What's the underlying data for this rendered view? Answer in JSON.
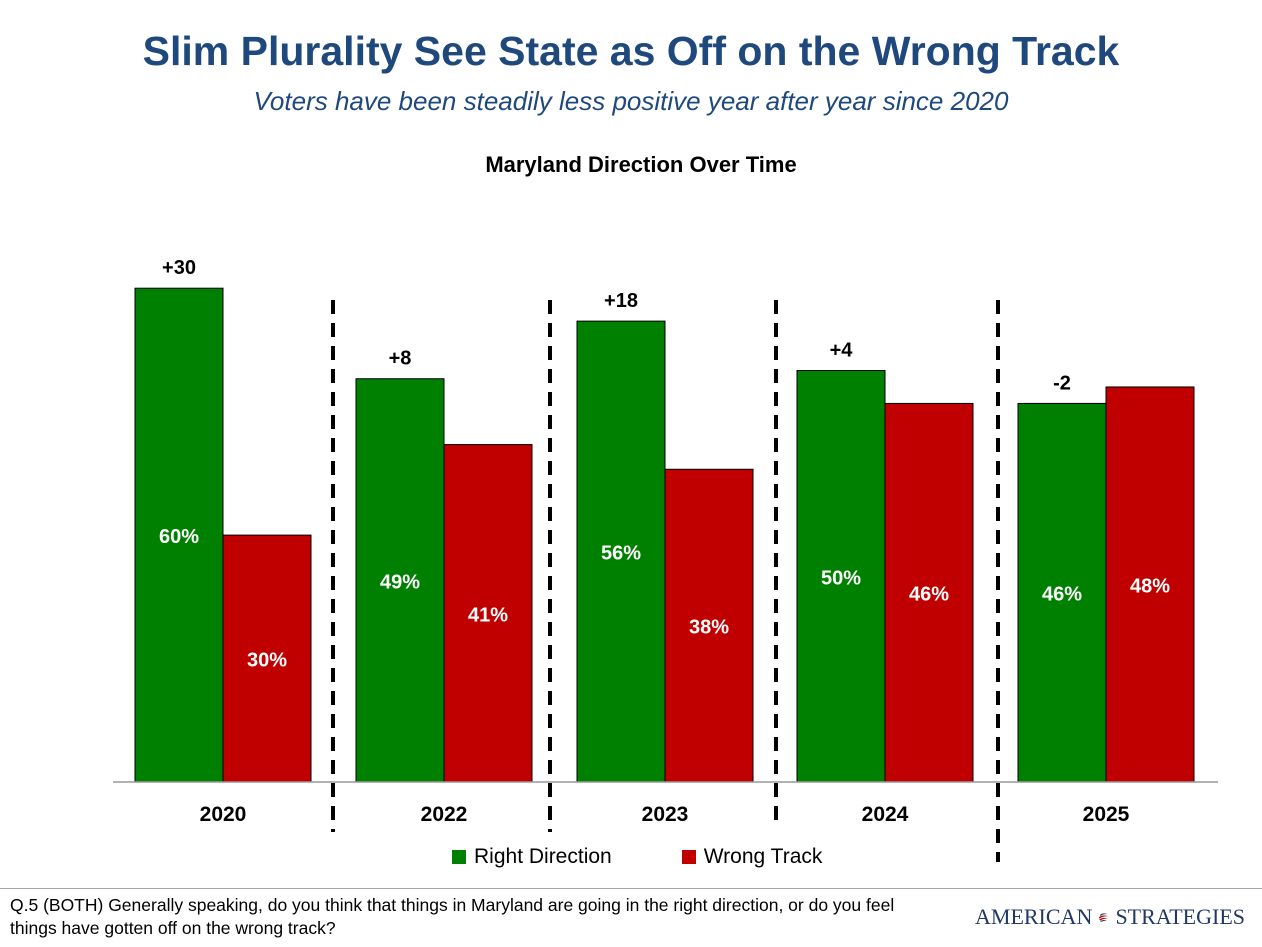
{
  "header": {
    "title": "Slim Plurality See State as Off on the Wrong Track",
    "subtitle": "Voters have been steadily less positive year after year since 2020"
  },
  "chart_data": {
    "type": "bar",
    "title": "Maryland Direction  Over Time",
    "categories": [
      "2020",
      "2022",
      "2023",
      "2024",
      "2025"
    ],
    "series": [
      {
        "name": "Right Direction",
        "color": "#008000",
        "values": [
          60,
          49,
          56,
          50,
          46
        ],
        "labels": [
          "60%",
          "49%",
          "56%",
          "50%",
          "46%"
        ]
      },
      {
        "name": "Wrong Track",
        "color": "#c00000",
        "values": [
          30,
          41,
          38,
          46,
          48
        ],
        "labels": [
          "30%",
          "41%",
          "38%",
          "46%",
          "48%"
        ]
      }
    ],
    "net_labels": [
      "+30",
      "+8",
      "+18",
      "+4",
      "-2"
    ],
    "ylim": [
      0,
      60
    ],
    "grid": false,
    "legend_position": "bottom"
  },
  "footer": {
    "question": "Q.5 (BOTH) Generally speaking, do you think that things in Maryland are going in the right direction, or do you feel things have gotten off on the wrong track?",
    "logo_left": "AMERICAN",
    "logo_right": "STRATEGIES"
  }
}
